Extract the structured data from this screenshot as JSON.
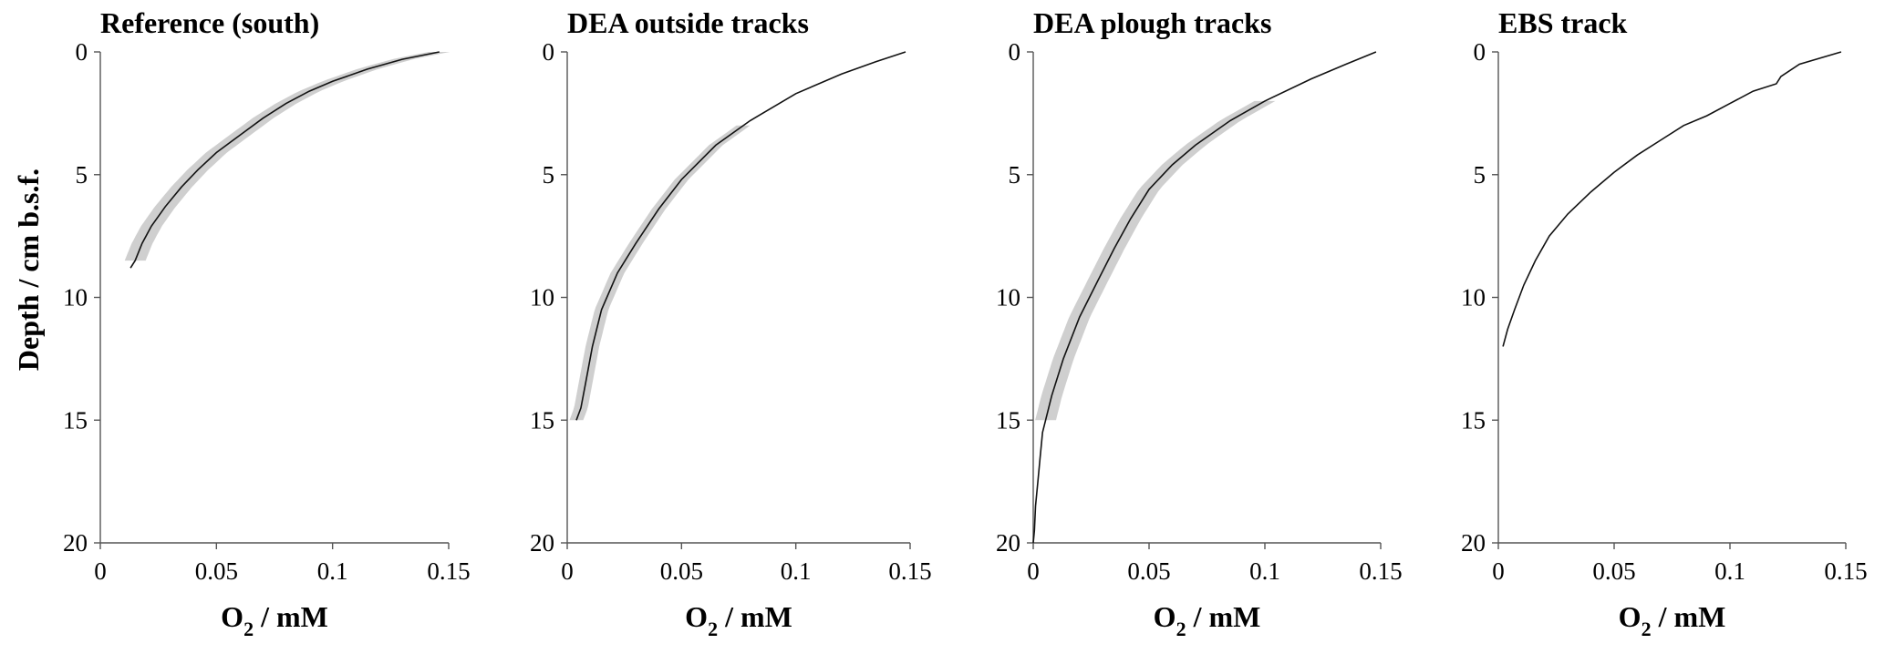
{
  "figure": {
    "ylabel": "Depth / cm b.s.f.",
    "xlabel": {
      "base": "O",
      "sub": "2",
      "rest": " / mM"
    }
  },
  "chart_data": [
    {
      "type": "line",
      "title": "Reference (south)",
      "xlim": [
        0,
        0.15
      ],
      "ylim": [
        0,
        20
      ],
      "y_inverted": true,
      "xticks": [
        "0",
        "0.05",
        "0.1",
        "0.15"
      ],
      "yticks": [
        "0",
        "5",
        "10",
        "15",
        "20"
      ],
      "band_halfwidth": 0.0045,
      "band_depth_range": [
        0,
        8.5
      ],
      "points": [
        [
          0.146,
          0
        ],
        [
          0.13,
          0.3
        ],
        [
          0.115,
          0.7
        ],
        [
          0.1,
          1.2
        ],
        [
          0.09,
          1.6
        ],
        [
          0.08,
          2.1
        ],
        [
          0.07,
          2.7
        ],
        [
          0.06,
          3.4
        ],
        [
          0.05,
          4.1
        ],
        [
          0.042,
          4.8
        ],
        [
          0.035,
          5.5
        ],
        [
          0.028,
          6.3
        ],
        [
          0.022,
          7.1
        ],
        [
          0.018,
          7.8
        ],
        [
          0.015,
          8.5
        ],
        [
          0.013,
          8.8
        ]
      ]
    },
    {
      "type": "line",
      "title": "DEA outside tracks",
      "xlim": [
        0,
        0.15
      ],
      "ylim": [
        0,
        20
      ],
      "y_inverted": true,
      "xticks": [
        "0",
        "0.05",
        "0.1",
        "0.15"
      ],
      "yticks": [
        "0",
        "5",
        "10",
        "15",
        "20"
      ],
      "band_halfwidth": 0.003,
      "band_depth_range": [
        3,
        15
      ],
      "points": [
        [
          0.148,
          0
        ],
        [
          0.135,
          0.4
        ],
        [
          0.12,
          0.9
        ],
        [
          0.1,
          1.7
        ],
        [
          0.08,
          2.8
        ],
        [
          0.065,
          3.8
        ],
        [
          0.05,
          5.2
        ],
        [
          0.04,
          6.4
        ],
        [
          0.03,
          7.8
        ],
        [
          0.022,
          9.0
        ],
        [
          0.015,
          10.5
        ],
        [
          0.011,
          12.0
        ],
        [
          0.008,
          13.5
        ],
        [
          0.006,
          14.5
        ],
        [
          0.004,
          15
        ]
      ]
    },
    {
      "type": "line",
      "title": "DEA plough tracks",
      "xlim": [
        0,
        0.15
      ],
      "ylim": [
        0,
        20
      ],
      "y_inverted": true,
      "xticks": [
        "0",
        "0.05",
        "0.1",
        "0.15"
      ],
      "yticks": [
        "0",
        "5",
        "10",
        "15",
        "20"
      ],
      "band_halfwidth": 0.0045,
      "band_depth_range": [
        2,
        15
      ],
      "points": [
        [
          0.148,
          0
        ],
        [
          0.135,
          0.5
        ],
        [
          0.12,
          1.1
        ],
        [
          0.1,
          2.0
        ],
        [
          0.085,
          2.8
        ],
        [
          0.07,
          3.8
        ],
        [
          0.06,
          4.6
        ],
        [
          0.05,
          5.6
        ],
        [
          0.042,
          6.8
        ],
        [
          0.035,
          8.0
        ],
        [
          0.028,
          9.3
        ],
        [
          0.02,
          10.8
        ],
        [
          0.013,
          12.5
        ],
        [
          0.008,
          14.0
        ],
        [
          0.004,
          15.5
        ],
        [
          0.003,
          16.5
        ],
        [
          0.002,
          17.5
        ],
        [
          0.001,
          18.5
        ],
        [
          0.0005,
          19.5
        ],
        [
          0,
          20
        ]
      ]
    },
    {
      "type": "line",
      "title": "EBS track",
      "xlim": [
        0,
        0.15
      ],
      "ylim": [
        0,
        20
      ],
      "y_inverted": true,
      "xticks": [
        "0",
        "0.05",
        "0.1",
        "0.15"
      ],
      "yticks": [
        "0",
        "5",
        "10",
        "15",
        "20"
      ],
      "band_halfwidth": 0,
      "band_depth_range": [
        0,
        0
      ],
      "points": [
        [
          0.148,
          0
        ],
        [
          0.13,
          0.5
        ],
        [
          0.122,
          1.0
        ],
        [
          0.12,
          1.3
        ],
        [
          0.11,
          1.6
        ],
        [
          0.1,
          2.1
        ],
        [
          0.09,
          2.6
        ],
        [
          0.08,
          3.0
        ],
        [
          0.07,
          3.6
        ],
        [
          0.06,
          4.2
        ],
        [
          0.05,
          4.9
        ],
        [
          0.04,
          5.7
        ],
        [
          0.03,
          6.6
        ],
        [
          0.022,
          7.5
        ],
        [
          0.016,
          8.5
        ],
        [
          0.011,
          9.5
        ],
        [
          0.007,
          10.5
        ],
        [
          0.004,
          11.3
        ],
        [
          0.002,
          12.0
        ]
      ]
    }
  ]
}
